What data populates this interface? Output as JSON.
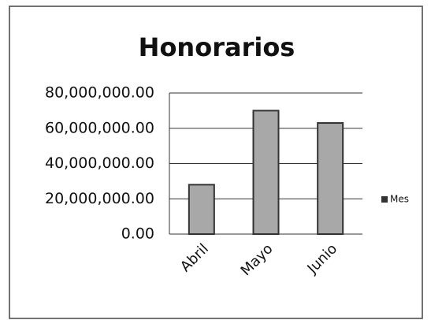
{
  "chart_data": {
    "type": "bar",
    "title": "Honorarios",
    "categories": [
      "Abril",
      "Mayo",
      "Junio"
    ],
    "series": [
      {
        "name": "Mes",
        "color": "#a8a8a8",
        "values": [
          28000000,
          70000000,
          63000000
        ]
      }
    ],
    "ylim": [
      0,
      80000000
    ],
    "yticks": [
      {
        "value": 0,
        "label": "0.00"
      },
      {
        "value": 20000000,
        "label": "20,000,000.00"
      },
      {
        "value": 40000000,
        "label": "40,000,000.00"
      },
      {
        "value": 60000000,
        "label": "60,000,000.00"
      },
      {
        "value": 80000000,
        "label": "80,000,000.00"
      }
    ],
    "grid": true,
    "legend": "right"
  }
}
